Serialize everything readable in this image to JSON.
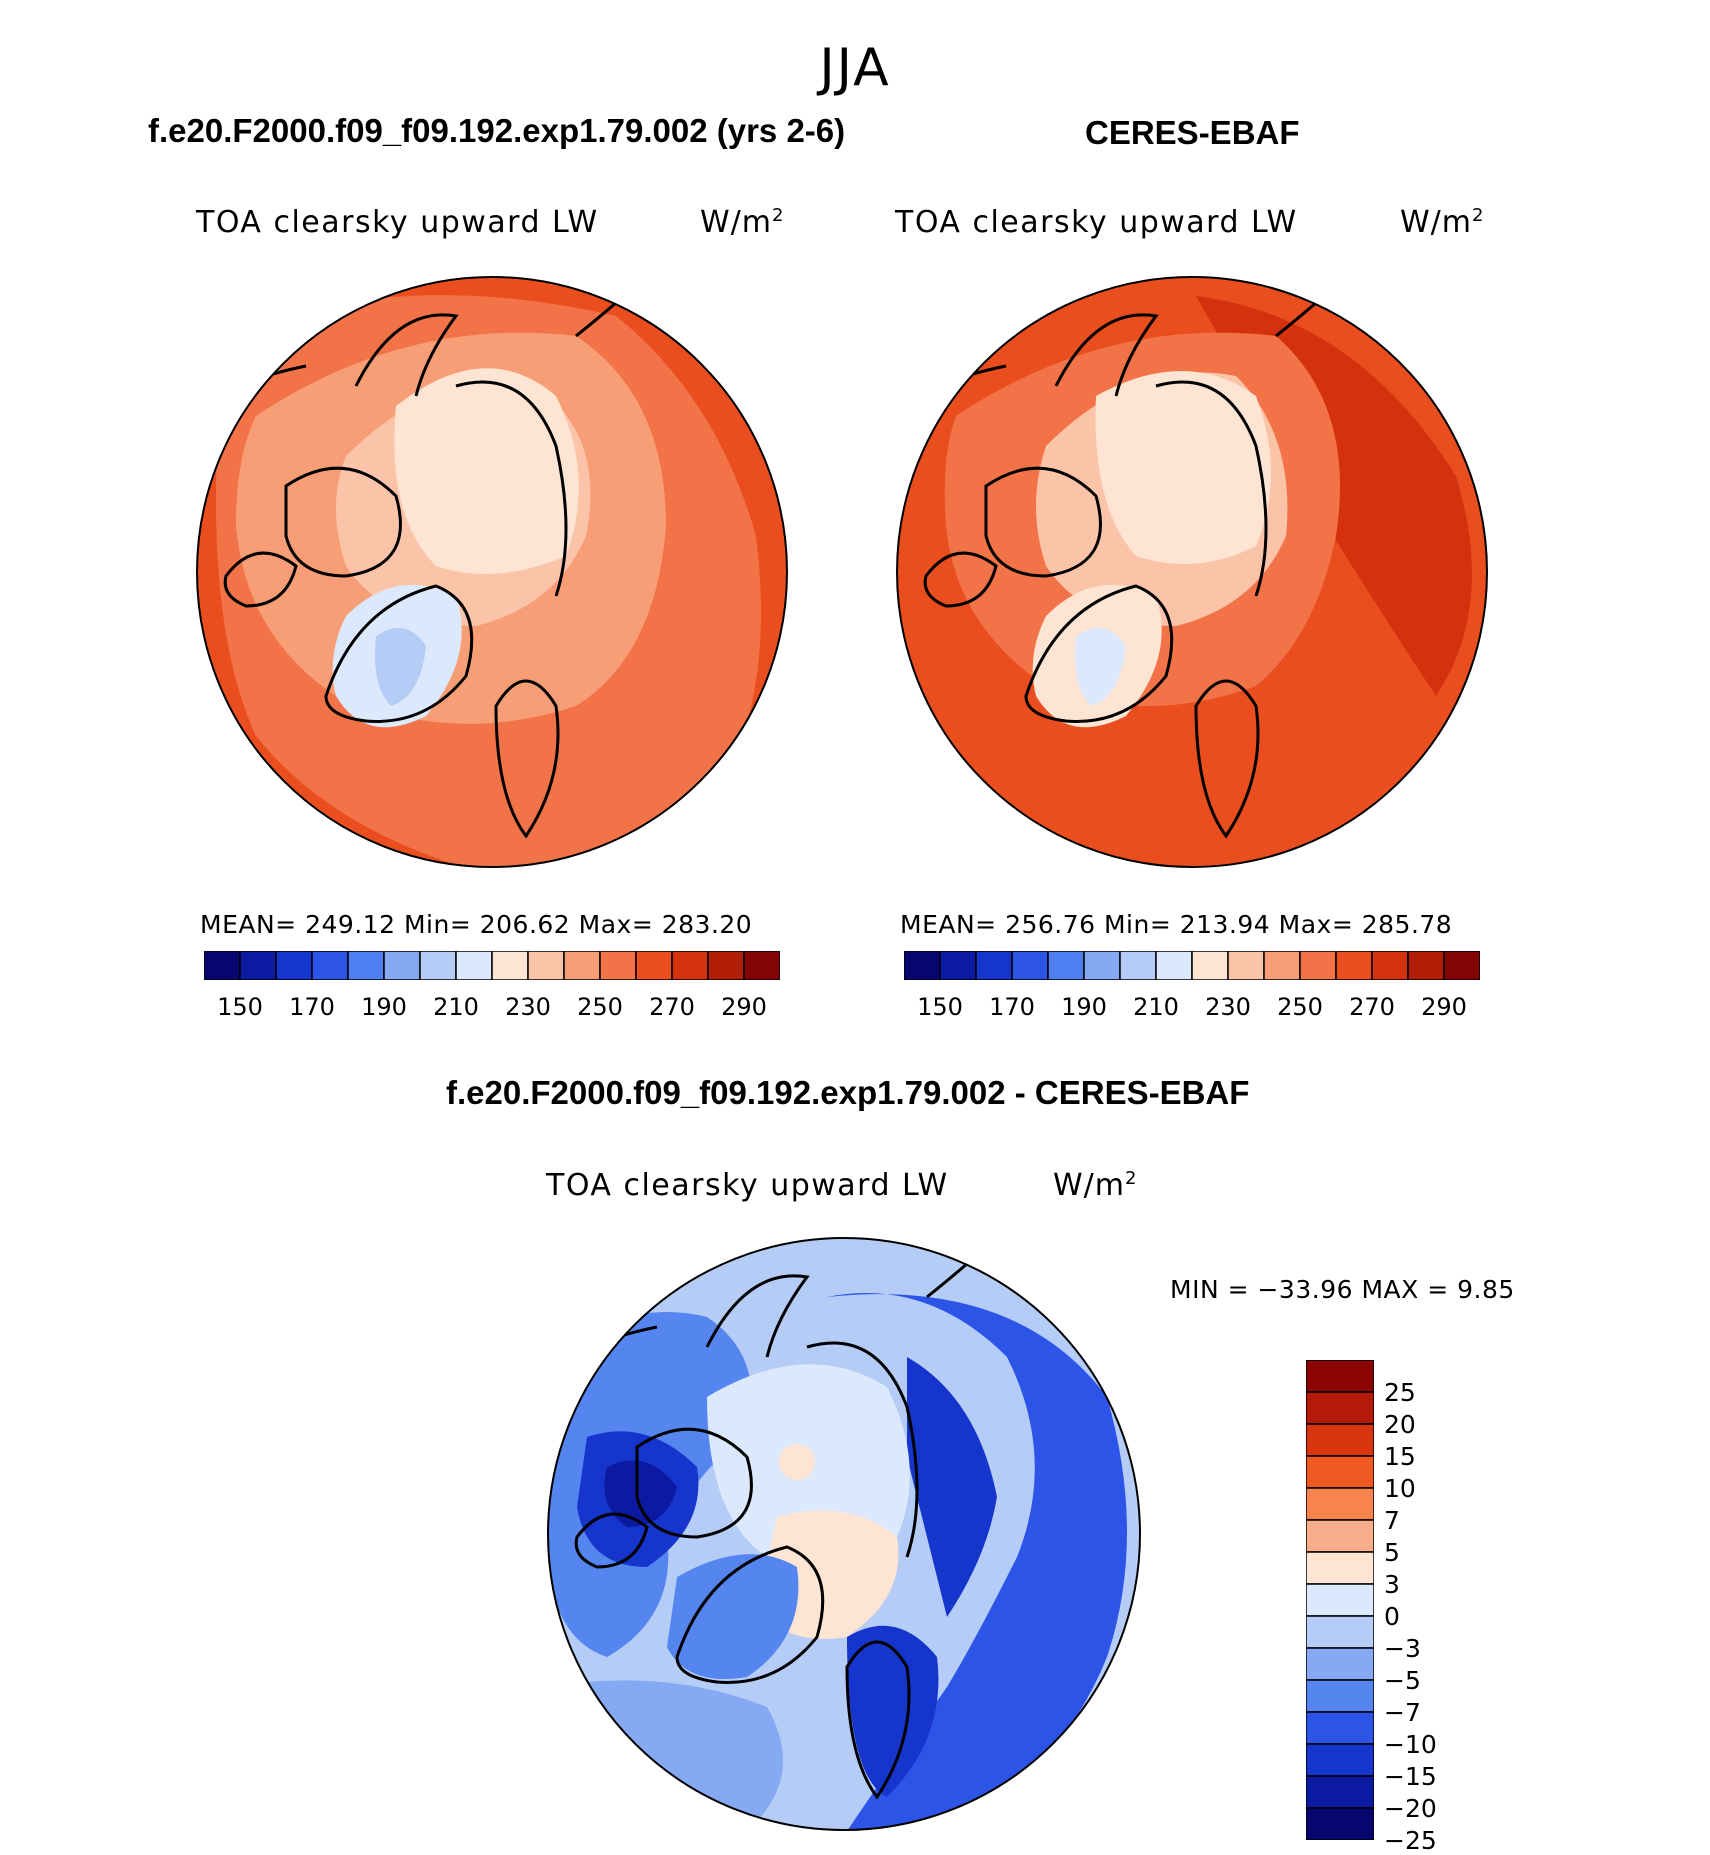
{
  "season": "JJA",
  "panels": [
    {
      "title": "f.e20.F2000.f09_f09.192.exp1.79.002 (yrs 2-6)",
      "variable": "TOA clearsky upward LW",
      "units": "W/m",
      "units_exp": "2",
      "stats": "MEAN= 249.12   Min= 206.62   Max= 283.20",
      "colorbar_ticks": [
        "150",
        "170",
        "190",
        "210",
        "230",
        "250",
        "270",
        "290"
      ]
    },
    {
      "title": "CERES-EBAF",
      "variable": "TOA clearsky upward LW",
      "units": "W/m",
      "units_exp": "2",
      "stats": "MEAN= 256.76   Min= 213.94   Max= 285.78",
      "colorbar_ticks": [
        "150",
        "170",
        "190",
        "210",
        "230",
        "250",
        "270",
        "290"
      ]
    }
  ],
  "difference": {
    "title": "f.e20.F2000.f09_f09.192.exp1.79.002 - CERES-EBAF",
    "variable": "TOA clearsky upward LW",
    "units": "W/m",
    "units_exp": "2",
    "stats": "MIN = −33.96 MAX =     9.85",
    "colorbar_ticks": [
      "25",
      "20",
      "15",
      "10",
      "7",
      "5",
      "3",
      "0",
      "−3",
      "−5",
      "−7",
      "−10",
      "−15",
      "−20",
      "−25"
    ]
  },
  "colors": {
    "abs_scale": [
      "#06066e",
      "#0b1aa0",
      "#1535cc",
      "#2c55e8",
      "#4f7ef0",
      "#86a9f3",
      "#b5ccf7",
      "#dce8fb",
      "#fde4d3",
      "#fbc4a8",
      "#f79e76",
      "#f27348",
      "#ea4e1f",
      "#d4320e",
      "#b01e07",
      "#830405"
    ],
    "diff_scale": [
      "#8b0303",
      "#b51a08",
      "#d83510",
      "#f05a22",
      "#f7844f",
      "#f9ae8b",
      "#fde4d3",
      "#dce8fb",
      "#b5ccf7",
      "#86a9f3",
      "#5585ee",
      "#2c55e8",
      "#1535cc",
      "#0b1aa0",
      "#06066e"
    ]
  }
}
